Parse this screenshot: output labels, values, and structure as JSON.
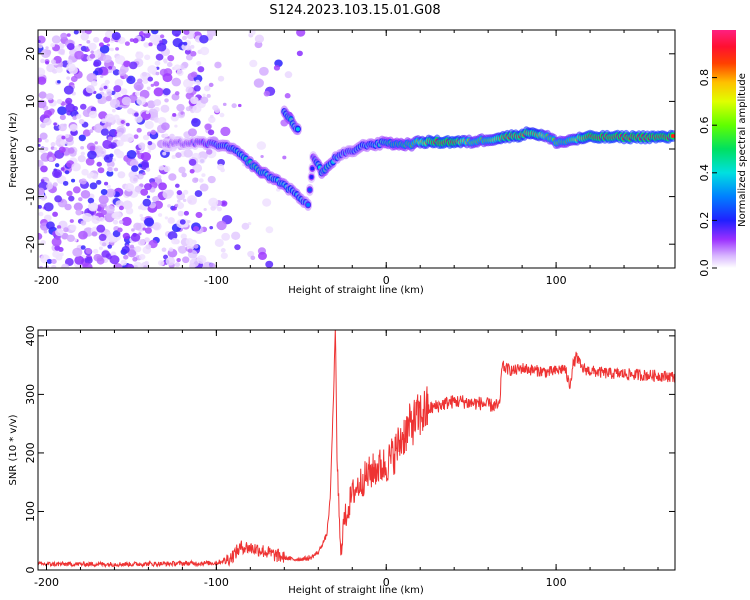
{
  "title": "S124.2023.103.15.01.G08",
  "chart_data": [
    {
      "type": "heatmap",
      "name": "spectrogram",
      "xlabel": "Height of straight line (km)",
      "ylabel": "Frequency (Hz)",
      "xlim": [
        -205,
        170
      ],
      "ylim": [
        -25,
        25
      ],
      "xticks": [
        -200,
        -100,
        0,
        100
      ],
      "yticks": [
        -20,
        -10,
        0,
        10,
        20
      ],
      "colorbar": {
        "label": "Normalized spectral amplitude",
        "range": [
          0,
          1
        ],
        "ticks": [
          "0.0",
          "0.2",
          "0.4",
          "0.6",
          "0.8"
        ]
      },
      "colors": {
        "low": "#d9b8ff",
        "mid": "#8a2be2",
        "blue": "#1e3cff",
        "cyan": "#00d8e8",
        "green": "#22dd44",
        "high": "#ff2020"
      },
      "ridge": [
        {
          "x": -130,
          "y": 1.0,
          "a": 0.15
        },
        {
          "x": -120,
          "y": 1.2,
          "a": 0.15
        },
        {
          "x": -110,
          "y": 1.3,
          "a": 0.2
        },
        {
          "x": -100,
          "y": 1.0,
          "a": 0.3
        },
        {
          "x": -90,
          "y": 0.0,
          "a": 0.35
        },
        {
          "x": -85,
          "y": -1.5,
          "a": 0.4
        },
        {
          "x": -80,
          "y": -3.0,
          "a": 0.45
        },
        {
          "x": -75,
          "y": -4.5,
          "a": 0.45
        },
        {
          "x": -70,
          "y": -5.5,
          "a": 0.4
        },
        {
          "x": -65,
          "y": -6.5,
          "a": 0.4
        },
        {
          "x": -60,
          "y": -7.5,
          "a": 0.4
        },
        {
          "x": -55,
          "y": -9.0,
          "a": 0.35
        },
        {
          "x": -50,
          "y": -10.5,
          "a": 0.35
        },
        {
          "x": -46,
          "y": -11.5,
          "a": 0.3
        },
        {
          "x": -44,
          "y": -6.0,
          "a": 0.2
        },
        {
          "x": -43,
          "y": -2.0,
          "a": 0.2
        },
        {
          "x": -40,
          "y": -3.0,
          "a": 0.4
        },
        {
          "x": -38,
          "y": -5.0,
          "a": 0.4
        },
        {
          "x": -35,
          "y": -4.0,
          "a": 0.45
        },
        {
          "x": -30,
          "y": -2.0,
          "a": 0.35
        },
        {
          "x": -25,
          "y": -1.0,
          "a": 0.3
        },
        {
          "x": -20,
          "y": -0.5,
          "a": 0.3
        },
        {
          "x": -15,
          "y": 0.5,
          "a": 0.35
        },
        {
          "x": -10,
          "y": 1.0,
          "a": 0.35
        },
        {
          "x": -5,
          "y": 1.0,
          "a": 0.4
        },
        {
          "x": 0,
          "y": 1.5,
          "a": 0.45
        },
        {
          "x": 5,
          "y": 1.0,
          "a": 0.5
        },
        {
          "x": 10,
          "y": 1.0,
          "a": 0.5
        },
        {
          "x": 15,
          "y": 1.0,
          "a": 0.55
        },
        {
          "x": 20,
          "y": 1.5,
          "a": 0.7
        },
        {
          "x": 30,
          "y": 1.5,
          "a": 0.9
        },
        {
          "x": 40,
          "y": 1.5,
          "a": 0.9
        },
        {
          "x": 50,
          "y": 1.5,
          "a": 0.6
        },
        {
          "x": 60,
          "y": 2.0,
          "a": 0.6
        },
        {
          "x": 70,
          "y": 2.5,
          "a": 0.85
        },
        {
          "x": 80,
          "y": 3.0,
          "a": 0.85
        },
        {
          "x": 85,
          "y": 3.5,
          "a": 0.8
        },
        {
          "x": 90,
          "y": 3.0,
          "a": 0.8
        },
        {
          "x": 95,
          "y": 2.5,
          "a": 0.6
        },
        {
          "x": 100,
          "y": 1.5,
          "a": 0.6
        },
        {
          "x": 105,
          "y": 1.5,
          "a": 0.55
        },
        {
          "x": 110,
          "y": 2.0,
          "a": 0.65
        },
        {
          "x": 120,
          "y": 2.5,
          "a": 0.9
        },
        {
          "x": 130,
          "y": 2.5,
          "a": 0.9
        },
        {
          "x": 140,
          "y": 2.5,
          "a": 0.9
        },
        {
          "x": 150,
          "y": 2.5,
          "a": 0.9
        },
        {
          "x": 160,
          "y": 2.5,
          "a": 0.9
        },
        {
          "x": 170,
          "y": 2.5,
          "a": 0.9
        }
      ],
      "branch": [
        {
          "x": -60,
          "y": 8.0,
          "a": 0.35
        },
        {
          "x": -57,
          "y": 6.5,
          "a": 0.45
        },
        {
          "x": -54,
          "y": 5.0,
          "a": 0.4
        },
        {
          "x": -51,
          "y": 3.5,
          "a": 0.35
        }
      ]
    },
    {
      "type": "line",
      "name": "snr",
      "xlabel": "Height of straight line (km)",
      "ylabel": "SNR (10 * v/v)",
      "xlim": [
        -205,
        170
      ],
      "ylim": [
        0,
        410
      ],
      "xticks": [
        -200,
        -100,
        0,
        100
      ],
      "yticks": [
        0,
        100,
        200,
        300,
        400
      ],
      "color": "#ee3333",
      "series": [
        {
          "name": "SNR",
          "x": [
            -205,
            -150,
            -100,
            -92,
            -85,
            -75,
            -65,
            -55,
            -45,
            -40,
            -35,
            -33,
            -31,
            -30,
            -29,
            -27,
            -25,
            -20,
            -15,
            -10,
            -5,
            0,
            5,
            10,
            15,
            20,
            25,
            30,
            35,
            40,
            45,
            50,
            55,
            60,
            65,
            67,
            68,
            70,
            75,
            80,
            85,
            90,
            95,
            100,
            105,
            108,
            110,
            112,
            115,
            120,
            130,
            140,
            150,
            160,
            170
          ],
          "y": [
            10,
            10,
            12,
            20,
            40,
            35,
            25,
            18,
            20,
            30,
            60,
            120,
            300,
            410,
            200,
            30,
            80,
            130,
            150,
            165,
            175,
            180,
            200,
            230,
            250,
            265,
            275,
            280,
            285,
            288,
            288,
            285,
            285,
            282,
            280,
            282,
            350,
            345,
            340,
            345,
            342,
            340,
            338,
            340,
            345,
            315,
            350,
            365,
            345,
            340,
            336,
            335,
            333,
            332,
            330
          ]
        }
      ]
    }
  ]
}
